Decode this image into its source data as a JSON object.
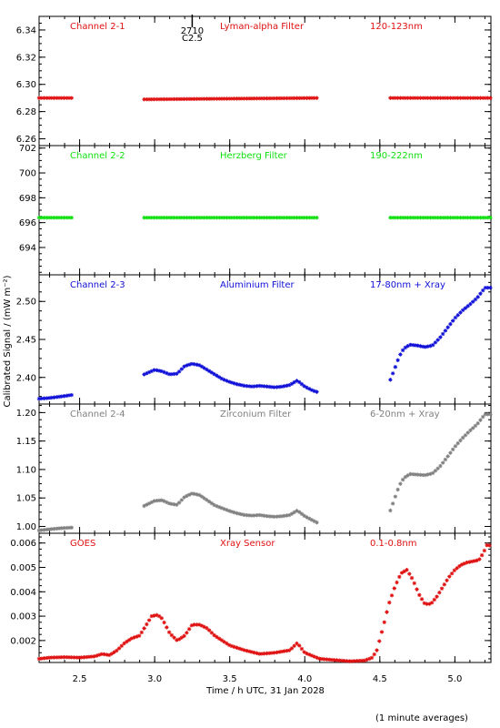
{
  "colors": {
    "red": "#e01010",
    "green": "#10e010",
    "blue": "#1010d8",
    "gray": "#808080",
    "axis": "#000000"
  },
  "chart_data": {
    "type": "scatter",
    "x_range": [
      2.23,
      5.24
    ],
    "x_ticks": [
      2.5,
      3.0,
      3.5,
      4.0,
      4.5,
      5.0
    ],
    "x_tick_labels": [
      "2.5",
      "3.0",
      "3.5",
      "4.0",
      "4.5",
      "5.0"
    ],
    "xlabel": "Time / h UTC, 31 Jan 2028",
    "ylabel": "Calibrated Signal / (mW m⁻²)",
    "note": "(1 minute averages)",
    "event_marker": {
      "x": 3.25,
      "labels": [
        "2710",
        "C2.5"
      ]
    },
    "panels": [
      {
        "name": "Channel 2-1",
        "filter": "Lyman-alpha Filter",
        "band": "120-123nm",
        "color_key": "red",
        "ylim": [
          6.255,
          6.35
        ],
        "yticks": [
          6.26,
          6.28,
          6.3,
          6.32,
          6.34
        ],
        "ytick_labels": [
          "6.26",
          "6.28",
          "6.30",
          "6.32",
          "6.34"
        ],
        "segments": [
          {
            "x": [
              2.23,
              2.45
            ],
            "y": [
              6.29,
              6.29
            ]
          },
          {
            "x": [
              2.93,
              4.08
            ],
            "y": [
              6.289,
              6.29
            ]
          },
          {
            "x": [
              4.57,
              5.24
            ],
            "y": [
              6.29,
              6.29
            ]
          }
        ]
      },
      {
        "name": "Channel 2-2",
        "filter": "Herzberg Filter",
        "band": "190-222nm",
        "color_key": "green",
        "ylim": [
          691.8,
          702.2
        ],
        "yticks": [
          694,
          696,
          698,
          700,
          702
        ],
        "ytick_labels": [
          "694",
          "696",
          "698",
          "700",
          "702"
        ],
        "segments": [
          {
            "x": [
              2.23,
              2.45
            ],
            "y": [
              696.4,
              696.4
            ]
          },
          {
            "x": [
              2.93,
              4.08
            ],
            "y": [
              696.4,
              696.4
            ]
          },
          {
            "x": [
              4.57,
              5.24
            ],
            "y": [
              696.4,
              696.4
            ]
          }
        ]
      },
      {
        "name": "Channel 2-3",
        "filter": "Aluminium Filter",
        "band": "17-80nm + Xray",
        "color_key": "blue",
        "ylim": [
          2.365,
          2.535
        ],
        "yticks": [
          2.4,
          2.45,
          2.5
        ],
        "ytick_labels": [
          "2.40",
          "2.45",
          "2.50"
        ],
        "segments": [
          {
            "x": [
              2.23,
              2.3,
              2.38,
              2.45
            ],
            "y": [
              2.372,
              2.373,
              2.375,
              2.377
            ]
          },
          {
            "x": [
              2.93,
              3.0,
              3.05,
              3.1,
              3.15,
              3.2,
              3.25,
              3.3,
              3.35,
              3.4,
              3.45,
              3.5,
              3.55,
              3.6,
              3.65,
              3.7,
              3.75,
              3.8,
              3.85,
              3.9,
              3.95,
              4.0,
              4.05,
              4.08
            ],
            "y": [
              2.404,
              2.41,
              2.408,
              2.404,
              2.405,
              2.415,
              2.418,
              2.416,
              2.41,
              2.404,
              2.398,
              2.394,
              2.391,
              2.389,
              2.388,
              2.389,
              2.388,
              2.387,
              2.388,
              2.39,
              2.396,
              2.388,
              2.383,
              2.381
            ]
          },
          {
            "x": [
              4.57,
              4.6,
              4.63,
              4.66,
              4.7,
              4.75,
              4.8,
              4.85,
              4.9,
              4.95,
              5.0,
              5.05,
              5.1,
              5.15,
              5.2,
              5.24
            ],
            "y": [
              2.397,
              2.412,
              2.428,
              2.438,
              2.443,
              2.442,
              2.44,
              2.442,
              2.452,
              2.465,
              2.478,
              2.488,
              2.496,
              2.505,
              2.518,
              2.518
            ]
          }
        ]
      },
      {
        "name": "Channel 2-4",
        "filter": "Zirconium Filter",
        "band": "6-20nm + Xray",
        "color_key": "gray",
        "ylim": [
          0.988,
          1.215
        ],
        "yticks": [
          1.0,
          1.05,
          1.1,
          1.15,
          1.2
        ],
        "ytick_labels": [
          "1.00",
          "1.05",
          "1.10",
          "1.15",
          "1.20"
        ],
        "segments": [
          {
            "x": [
              2.23,
              2.3,
              2.38,
              2.45
            ],
            "y": [
              0.993,
              0.995,
              0.997,
              0.998
            ]
          },
          {
            "x": [
              2.93,
              3.0,
              3.05,
              3.1,
              3.15,
              3.2,
              3.25,
              3.3,
              3.35,
              3.4,
              3.45,
              3.5,
              3.55,
              3.6,
              3.65,
              3.7,
              3.75,
              3.8,
              3.85,
              3.9,
              3.95,
              4.0,
              4.05,
              4.08
            ],
            "y": [
              1.036,
              1.045,
              1.046,
              1.04,
              1.038,
              1.052,
              1.058,
              1.055,
              1.046,
              1.037,
              1.032,
              1.027,
              1.023,
              1.02,
              1.019,
              1.02,
              1.018,
              1.017,
              1.018,
              1.02,
              1.028,
              1.018,
              1.011,
              1.007
            ]
          },
          {
            "x": [
              4.57,
              4.6,
              4.63,
              4.66,
              4.7,
              4.75,
              4.8,
              4.85,
              4.9,
              4.95,
              5.0,
              5.05,
              5.1,
              5.15,
              5.2,
              5.24
            ],
            "y": [
              1.028,
              1.05,
              1.072,
              1.085,
              1.092,
              1.091,
              1.09,
              1.093,
              1.105,
              1.122,
              1.14,
              1.155,
              1.168,
              1.18,
              1.197,
              1.197
            ]
          }
        ]
      },
      {
        "name": "GOES",
        "filter": "Xray Sensor",
        "band": "0.1-0.8nm",
        "color_key": "red",
        "ylim": [
          0.0011,
          0.0064
        ],
        "yticks": [
          0.002,
          0.003,
          0.004,
          0.005,
          0.006
        ],
        "ytick_labels": [
          "0.002",
          "0.003",
          "0.004",
          "0.005",
          "0.006"
        ],
        "segments": [
          {
            "x": [
              2.23,
              2.3,
              2.4,
              2.5,
              2.6,
              2.65,
              2.7,
              2.75,
              2.8,
              2.85,
              2.9,
              2.95,
              2.98,
              3.02,
              3.05,
              3.1,
              3.15,
              3.2,
              3.25,
              3.3,
              3.35,
              3.4,
              3.45,
              3.5,
              3.6,
              3.7,
              3.8,
              3.85,
              3.9,
              3.95,
              4.0,
              4.1,
              4.2,
              4.3,
              4.4,
              4.45,
              4.48,
              4.52,
              4.56,
              4.6,
              4.64,
              4.68,
              4.72,
              4.76,
              4.8,
              4.84,
              4.88,
              4.92,
              4.96,
              5.0,
              5.04,
              5.08,
              5.12,
              5.16,
              5.19,
              5.22,
              5.24
            ],
            "y": [
              0.00125,
              0.0013,
              0.00132,
              0.0013,
              0.00135,
              0.00145,
              0.0014,
              0.0016,
              0.0019,
              0.0021,
              0.0022,
              0.0027,
              0.003,
              0.00305,
              0.0029,
              0.0023,
              0.002,
              0.0022,
              0.00265,
              0.00265,
              0.0025,
              0.0022,
              0.002,
              0.0018,
              0.0016,
              0.00145,
              0.0015,
              0.00155,
              0.0016,
              0.0019,
              0.0015,
              0.00125,
              0.0012,
              0.00115,
              0.00118,
              0.0013,
              0.0016,
              0.0025,
              0.0035,
              0.0042,
              0.00475,
              0.0049,
              0.0045,
              0.0039,
              0.0035,
              0.0035,
              0.0038,
              0.0042,
              0.0046,
              0.0049,
              0.0051,
              0.0052,
              0.00525,
              0.0053,
              0.0056,
              0.006,
              0.0058
            ]
          }
        ]
      }
    ]
  }
}
